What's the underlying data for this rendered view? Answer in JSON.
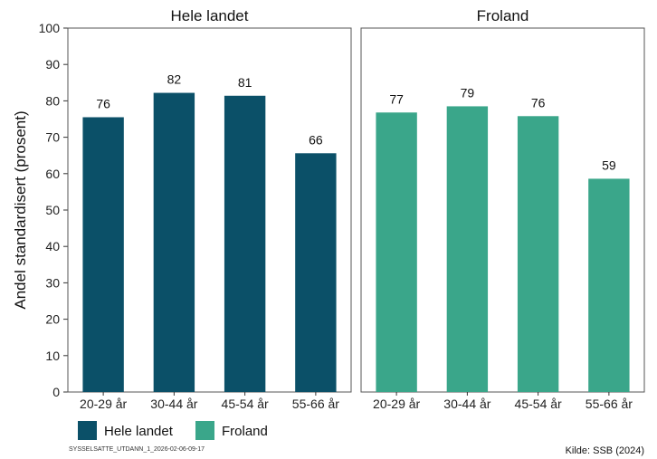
{
  "chart_data": {
    "type": "bar",
    "ylabel": "Andel standardisert (prosent)",
    "ylim": [
      0,
      100
    ],
    "yticks": [
      0,
      10,
      20,
      30,
      40,
      50,
      60,
      70,
      80,
      90,
      100
    ],
    "grid": false,
    "legend_placement": "bottom-left",
    "categories": [
      "20-29 år",
      "30-44 år",
      "45-54 år",
      "55-66 år"
    ],
    "panels": [
      {
        "title": "Hele landet",
        "series_name": "Hele landet",
        "color": "#0b5068",
        "values": [
          75.5,
          82.2,
          81.4,
          65.6
        ],
        "value_labels": [
          "76",
          "82",
          "81",
          "66"
        ]
      },
      {
        "title": "Froland",
        "series_name": "Froland",
        "color": "#3aa68a",
        "values": [
          76.8,
          78.5,
          75.8,
          58.6
        ],
        "value_labels": [
          "77",
          "79",
          "76",
          "59"
        ]
      }
    ]
  },
  "footer": {
    "code": "SYSSELSATTE_UTDANN_1_2026-02-06-09-17",
    "source": "Kilde: SSB (2024)"
  }
}
